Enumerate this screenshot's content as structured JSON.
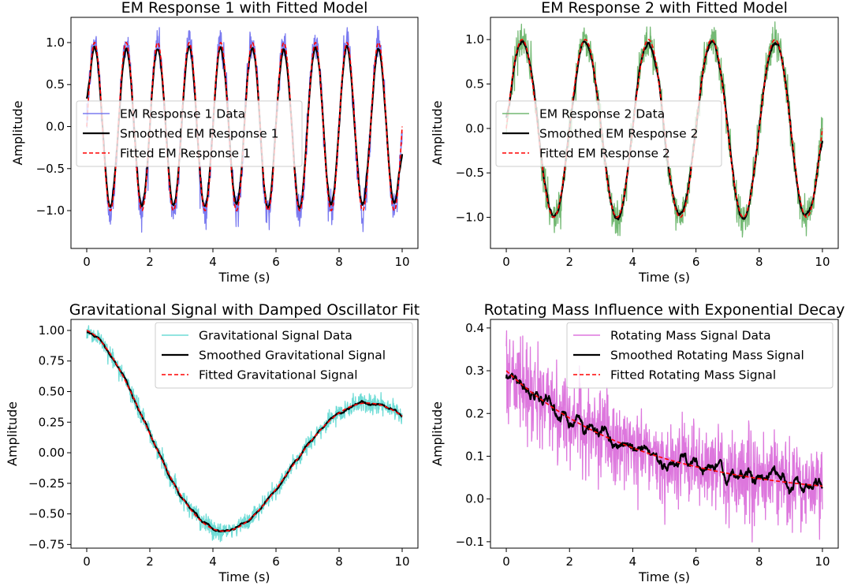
{
  "chart_data": [
    {
      "type": "line",
      "title": "EM Response 1 with Fitted Model",
      "xlabel": "Time (s)",
      "ylabel": "Amplitude",
      "xlim": [
        -0.5,
        10.5
      ],
      "ylim": [
        -1.45,
        1.3
      ],
      "xticks": [
        0,
        2,
        4,
        6,
        8,
        10
      ],
      "xtick_labels": [
        "0",
        "2",
        "4",
        "6",
        "8",
        "10"
      ],
      "yticks": [
        -1.0,
        -0.5,
        0.0,
        0.5,
        1.0
      ],
      "ytick_labels": [
        "−1.0",
        "−0.5",
        "0.0",
        "0.5",
        "1.0"
      ],
      "legend_position": "center-left",
      "model": {
        "kind": "sine",
        "amplitude": 1.0,
        "frequency_hz": 1.0,
        "phase": 0.0,
        "noise_std": 0.1
      },
      "series": [
        {
          "name": "EM Response 1 Data",
          "color": "#7b7bf0",
          "style": "solid",
          "role": "data"
        },
        {
          "name": "Smoothed EM Response 1",
          "color": "#000000",
          "style": "solid",
          "role": "smooth"
        },
        {
          "name": "Fitted EM Response 1",
          "color": "#ff0000",
          "style": "dashed",
          "role": "fit"
        }
      ]
    },
    {
      "type": "line",
      "title": "EM Response 2 with Fitted Model",
      "xlabel": "Time (s)",
      "ylabel": "Amplitude",
      "xlim": [
        -0.5,
        10.5
      ],
      "ylim": [
        -1.35,
        1.25
      ],
      "xticks": [
        0,
        2,
        4,
        6,
        8,
        10
      ],
      "xtick_labels": [
        "0",
        "2",
        "4",
        "6",
        "8",
        "10"
      ],
      "yticks": [
        -1.0,
        -0.5,
        0.0,
        0.5,
        1.0
      ],
      "ytick_labels": [
        "−1.0",
        "−0.5",
        "0.0",
        "0.5",
        "1.0"
      ],
      "legend_position": "center-left",
      "model": {
        "kind": "sine",
        "amplitude": 1.0,
        "frequency_hz": 0.5,
        "phase": 0.0,
        "noise_std": 0.1
      },
      "series": [
        {
          "name": "EM Response 2 Data",
          "color": "#73b973",
          "style": "solid",
          "role": "data"
        },
        {
          "name": "Smoothed EM Response 2",
          "color": "#000000",
          "style": "solid",
          "role": "smooth"
        },
        {
          "name": "Fitted EM Response 2",
          "color": "#ff0000",
          "style": "dashed",
          "role": "fit"
        }
      ]
    },
    {
      "type": "line",
      "title": "Gravitational Signal with Damped Oscillator Fit",
      "xlabel": "Time (s)",
      "ylabel": "Amplitude",
      "xlim": [
        -0.5,
        10.5
      ],
      "ylim": [
        -0.78,
        1.09
      ],
      "xticks": [
        0,
        2,
        4,
        6,
        8,
        10
      ],
      "xtick_labels": [
        "0",
        "2",
        "4",
        "6",
        "8",
        "10"
      ],
      "yticks": [
        -0.75,
        -0.5,
        -0.25,
        0.0,
        0.25,
        0.5,
        0.75,
        1.0
      ],
      "ytick_labels": [
        "−0.75",
        "−0.50",
        "−0.25",
        "0.00",
        "0.25",
        "0.50",
        "0.75",
        "1.00"
      ],
      "legend_position": "upper-right",
      "model": {
        "kind": "damped_cosine",
        "amplitude": 1.0,
        "decay": 0.1,
        "angular_frequency": 0.69,
        "noise_std": 0.04
      },
      "series": [
        {
          "name": "Gravitational Signal Data",
          "color": "#6fdcd6",
          "style": "solid",
          "role": "data"
        },
        {
          "name": "Smoothed Gravitational Signal",
          "color": "#000000",
          "style": "solid",
          "role": "smooth"
        },
        {
          "name": "Fitted Gravitational Signal",
          "color": "#ff0000",
          "style": "dashed",
          "role": "fit"
        }
      ]
    },
    {
      "type": "line",
      "title": "Rotating Mass Influence with Exponential Decay",
      "xlabel": "Time (s)",
      "ylabel": "Amplitude",
      "xlim": [
        -0.5,
        10.5
      ],
      "ylim": [
        -0.115,
        0.42
      ],
      "xticks": [
        0,
        2,
        4,
        6,
        8,
        10
      ],
      "xtick_labels": [
        "0",
        "2",
        "4",
        "6",
        "8",
        "10"
      ],
      "yticks": [
        -0.1,
        0.0,
        0.1,
        0.2,
        0.3,
        0.4
      ],
      "ytick_labels": [
        "−0.1",
        "0.0",
        "0.1",
        "0.2",
        "0.3",
        "0.4"
      ],
      "legend_position": "upper-right",
      "model": {
        "kind": "exponential_decay",
        "amplitude": 0.3,
        "decay": 0.23,
        "noise_std": 0.05
      },
      "series": [
        {
          "name": "Rotating Mass Signal Data",
          "color": "#dd77dd",
          "style": "solid",
          "role": "data"
        },
        {
          "name": "Smoothed Rotating Mass Signal",
          "color": "#000000",
          "style": "solid",
          "role": "smooth"
        },
        {
          "name": "Fitted Rotating Mass Signal",
          "color": "#ff0000",
          "style": "dashed",
          "role": "fit"
        }
      ]
    }
  ]
}
